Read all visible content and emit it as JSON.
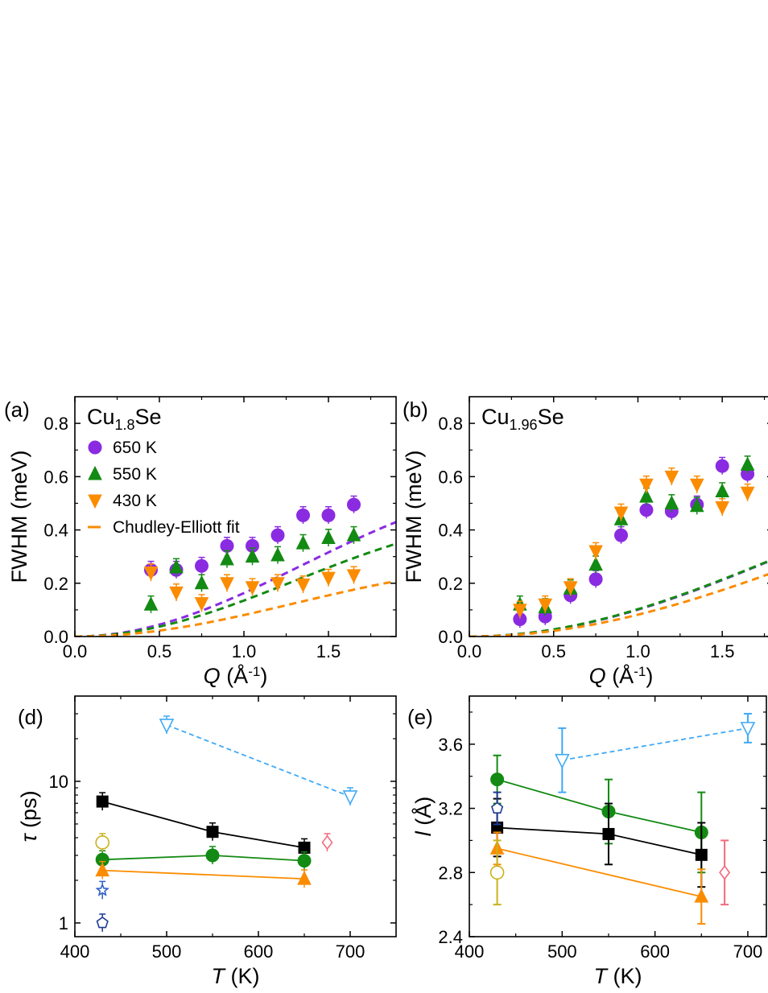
{
  "colors": {
    "purple": "#8a2be2",
    "green": "#138a13",
    "orange": "#fb8c00",
    "black": "#000000",
    "lightblue": "#3fa9f5",
    "navy": "#1f3a93",
    "blue": "#3060c8",
    "pink": "#f06a7c",
    "olive": "#c9b21a"
  },
  "chart_data": [
    {
      "type": "scatter",
      "panel_label": "(a)",
      "title_main": "Cu",
      "title_sub": "1.8",
      "title_end": "Se",
      "xlabel_var": "Q",
      "xlabel_unit": " (Å",
      "xlabel_sup": "-1",
      "xlabel_end": ")",
      "ylabel": "FWHM (meV)",
      "xlim": [
        0,
        1.9
      ],
      "ylim": [
        0,
        0.9
      ],
      "xticks": [
        "0.0",
        "0.5",
        "1.0",
        "1.5"
      ],
      "yticks": [
        "0.0",
        "0.2",
        "0.4",
        "0.6",
        "0.8"
      ],
      "legend_position": "upper-left",
      "legend": [
        "650 K",
        "550 K",
        "430 K",
        "Chudley-Elliott fit"
      ],
      "series": [
        {
          "name": "650 K",
          "marker": "circle",
          "color_key": "purple",
          "x": [
            0.45,
            0.6,
            0.75,
            0.9,
            1.05,
            1.2,
            1.35,
            1.5,
            1.65
          ],
          "y": [
            0.25,
            0.25,
            0.265,
            0.34,
            0.34,
            0.38,
            0.455,
            0.455,
            0.495
          ]
        },
        {
          "name": "550 K",
          "marker": "triangle-up",
          "color_key": "green",
          "x": [
            0.45,
            0.6,
            0.75,
            0.9,
            1.05,
            1.2,
            1.35,
            1.5,
            1.65
          ],
          "y": [
            0.12,
            0.26,
            0.2,
            0.29,
            0.3,
            0.305,
            0.35,
            0.37,
            0.38
          ]
        },
        {
          "name": "430 K",
          "marker": "triangle-down",
          "color_key": "orange",
          "x": [
            0.45,
            0.6,
            0.75,
            0.9,
            1.05,
            1.2,
            1.35,
            1.5,
            1.65
          ],
          "y": [
            0.24,
            0.165,
            0.125,
            0.2,
            0.185,
            0.2,
            0.195,
            0.22,
            0.23
          ]
        }
      ],
      "fits": [
        {
          "color_key": "purple",
          "A": 0.46,
          "B": 1.55
        },
        {
          "color_key": "green",
          "A": 0.36,
          "B": 1.6
        },
        {
          "color_key": "orange",
          "A": 0.215,
          "B": 1.6
        }
      ]
    },
    {
      "type": "scatter",
      "panel_label": "(b)",
      "title_main": "Cu",
      "title_sub": "1.96",
      "title_end": "Se",
      "xlabel_var": "Q",
      "xlabel_unit": " (Å",
      "xlabel_sup": "-1",
      "xlabel_end": ")",
      "ylabel": "FWHM (meV)",
      "xlim": [
        0,
        1.8
      ],
      "ylim": [
        0,
        0.9
      ],
      "xticks": [
        "0.0",
        "0.5",
        "1.0",
        "1.5"
      ],
      "yticks": [
        "0.0",
        "0.2",
        "0.4",
        "0.6",
        "0.8"
      ],
      "series": [
        {
          "name": "650 K",
          "marker": "circle",
          "color_key": "purple",
          "x": [
            0.3,
            0.45,
            0.6,
            0.75,
            0.9,
            1.05,
            1.2,
            1.35,
            1.5,
            1.65
          ],
          "y": [
            0.065,
            0.075,
            0.155,
            0.215,
            0.38,
            0.475,
            0.47,
            0.495,
            0.64,
            0.61
          ]
        },
        {
          "name": "550 K",
          "marker": "triangle-up",
          "color_key": "green",
          "x": [
            0.3,
            0.45,
            0.6,
            0.75,
            0.9,
            1.05,
            1.2,
            1.35,
            1.5,
            1.65
          ],
          "y": [
            0.12,
            0.11,
            0.18,
            0.27,
            0.44,
            0.525,
            0.5,
            0.49,
            0.545,
            0.645
          ]
        },
        {
          "name": "430 K",
          "marker": "triangle-down",
          "color_key": "orange",
          "x": [
            0.3,
            0.45,
            0.6,
            0.75,
            0.9,
            1.05,
            1.2,
            1.35,
            1.5,
            1.65
          ],
          "y": [
            0.1,
            0.12,
            0.185,
            0.32,
            0.465,
            0.57,
            0.6,
            0.57,
            0.485,
            0.54
          ]
        }
      ],
      "fits": [
        {
          "color_key": "purple",
          "A": 0.58,
          "B": 1.05
        },
        {
          "color_key": "green",
          "A": 0.54,
          "B": 1.1
        },
        {
          "color_key": "orange",
          "A": 0.57,
          "B": 0.95
        }
      ]
    },
    {
      "type": "scatter",
      "panel_label": "(d)",
      "ylabel_var": "τ",
      "ylabel_unit": " (ps)",
      "xlabel_var": "T",
      "xlabel_unit": " (K)",
      "xlim": [
        400,
        750
      ],
      "ylim": [
        0.8,
        40
      ],
      "yscale": "log",
      "xticks": [
        "400",
        "500",
        "600",
        "700"
      ],
      "yticks": [
        "1",
        "10"
      ],
      "series": [
        {
          "marker": "square",
          "color_key": "black",
          "line": "solid",
          "x": [
            430,
            550,
            650
          ],
          "y": [
            7.2,
            4.4,
            3.4
          ]
        },
        {
          "marker": "circle",
          "color_key": "green",
          "line": "solid",
          "x": [
            430,
            550,
            650
          ],
          "y": [
            2.8,
            3.0,
            2.75
          ]
        },
        {
          "marker": "triangle-up",
          "color_key": "orange",
          "line": "solid",
          "x": [
            430,
            650
          ],
          "y": [
            2.35,
            2.05
          ]
        },
        {
          "marker": "triangle-down-open",
          "color_key": "lightblue",
          "line": "dashed",
          "x": [
            500,
            700
          ],
          "y": [
            25,
            7.8
          ]
        },
        {
          "marker": "circle-open",
          "color_key": "olive",
          "line": "none",
          "x": [
            430
          ],
          "y": [
            3.7
          ]
        },
        {
          "marker": "star-open",
          "color_key": "blue",
          "line": "none",
          "x": [
            430
          ],
          "y": [
            1.7
          ]
        },
        {
          "marker": "pentagon-open",
          "color_key": "navy",
          "line": "none",
          "x": [
            430
          ],
          "y": [
            1.0
          ]
        },
        {
          "marker": "diamond-open",
          "color_key": "pink",
          "line": "none",
          "x": [
            675
          ],
          "y": [
            3.7
          ]
        }
      ]
    },
    {
      "type": "scatter",
      "panel_label": "(e)",
      "ylabel_var": "l",
      "ylabel_unit": " (Å)",
      "xlabel_var": "T",
      "xlabel_unit": " (K)",
      "xlim": [
        400,
        720
      ],
      "ylim": [
        2.4,
        3.9
      ],
      "xticks": [
        "400",
        "500",
        "600",
        "700"
      ],
      "yticks": [
        "2.4",
        "2.8",
        "3.2",
        "3.6"
      ],
      "series": [
        {
          "marker": "circle",
          "color_key": "green",
          "line": "solid",
          "x": [
            430,
            550,
            650
          ],
          "y": [
            3.38,
            3.18,
            3.05
          ],
          "err": [
            0.15,
            0.2,
            0.25
          ]
        },
        {
          "marker": "square",
          "color_key": "black",
          "line": "solid",
          "x": [
            430,
            550,
            650
          ],
          "y": [
            3.08,
            3.04,
            2.91
          ],
          "err": [
            0.18,
            0.19,
            0.2
          ]
        },
        {
          "marker": "triangle-up",
          "color_key": "orange",
          "line": "solid",
          "x": [
            430,
            650
          ],
          "y": [
            2.95,
            2.65
          ],
          "err": [
            0.1,
            0.17
          ]
        },
        {
          "marker": "triangle-down-open",
          "color_key": "lightblue",
          "line": "dashed",
          "x": [
            500,
            700
          ],
          "y": [
            3.5,
            3.7
          ],
          "err": [
            0.2,
            0.09
          ]
        },
        {
          "marker": "pentagon-open",
          "color_key": "navy",
          "line": "none",
          "x": [
            430
          ],
          "y": [
            3.2
          ],
          "err": [
            0.1
          ]
        },
        {
          "marker": "circle-open",
          "color_key": "olive",
          "line": "none",
          "x": [
            430
          ],
          "y": [
            2.8
          ],
          "err": [
            0.2
          ]
        },
        {
          "marker": "diamond-open",
          "color_key": "pink",
          "line": "none",
          "x": [
            675
          ],
          "y": [
            2.8
          ],
          "err": [
            0.2
          ]
        }
      ]
    }
  ]
}
